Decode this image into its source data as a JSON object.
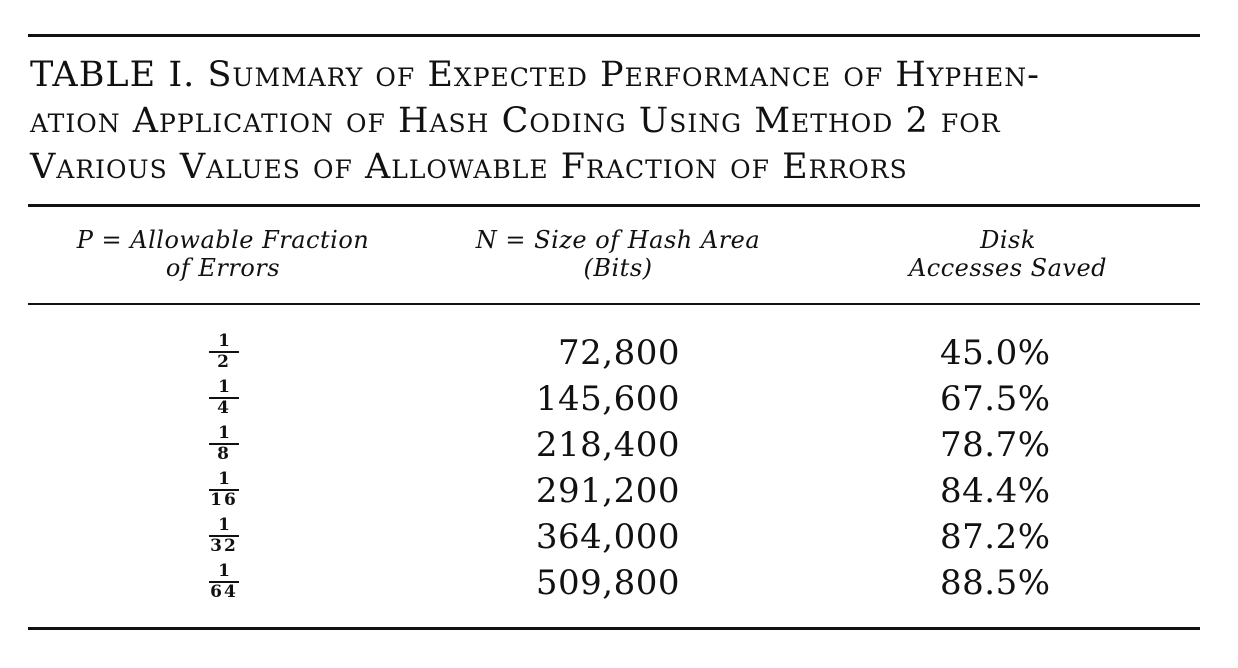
{
  "table": {
    "caption": {
      "line1_lead": "TABLE I.",
      "line1_rest": "Summary of Expected Performance of Hyphen-",
      "line2": "ation Application of Hash Coding Using Method 2 for",
      "line3": "Various Values of Allowable Fraction of Errors"
    },
    "headers": [
      {
        "line1": "P = Allowable Fraction",
        "line2": "of Errors"
      },
      {
        "line1": "N = Size of Hash Area",
        "line2": "(Bits)"
      },
      {
        "line1": "Disk",
        "line2": "Accesses Saved"
      }
    ],
    "rows": [
      {
        "p_num": "1",
        "p_den": "2",
        "n": "72,800",
        "saved": "45.0%"
      },
      {
        "p_num": "1",
        "p_den": "4",
        "n": "145,600",
        "saved": "67.5%"
      },
      {
        "p_num": "1",
        "p_den": "8",
        "n": "218,400",
        "saved": "78.7%"
      },
      {
        "p_num": "1",
        "p_den": "16",
        "n": "291,200",
        "saved": "84.4%"
      },
      {
        "p_num": "1",
        "p_den": "32",
        "n": "364,000",
        "saved": "87.2%"
      },
      {
        "p_num": "1",
        "p_den": "64",
        "n": "509,800",
        "saved": "88.5%"
      }
    ]
  }
}
